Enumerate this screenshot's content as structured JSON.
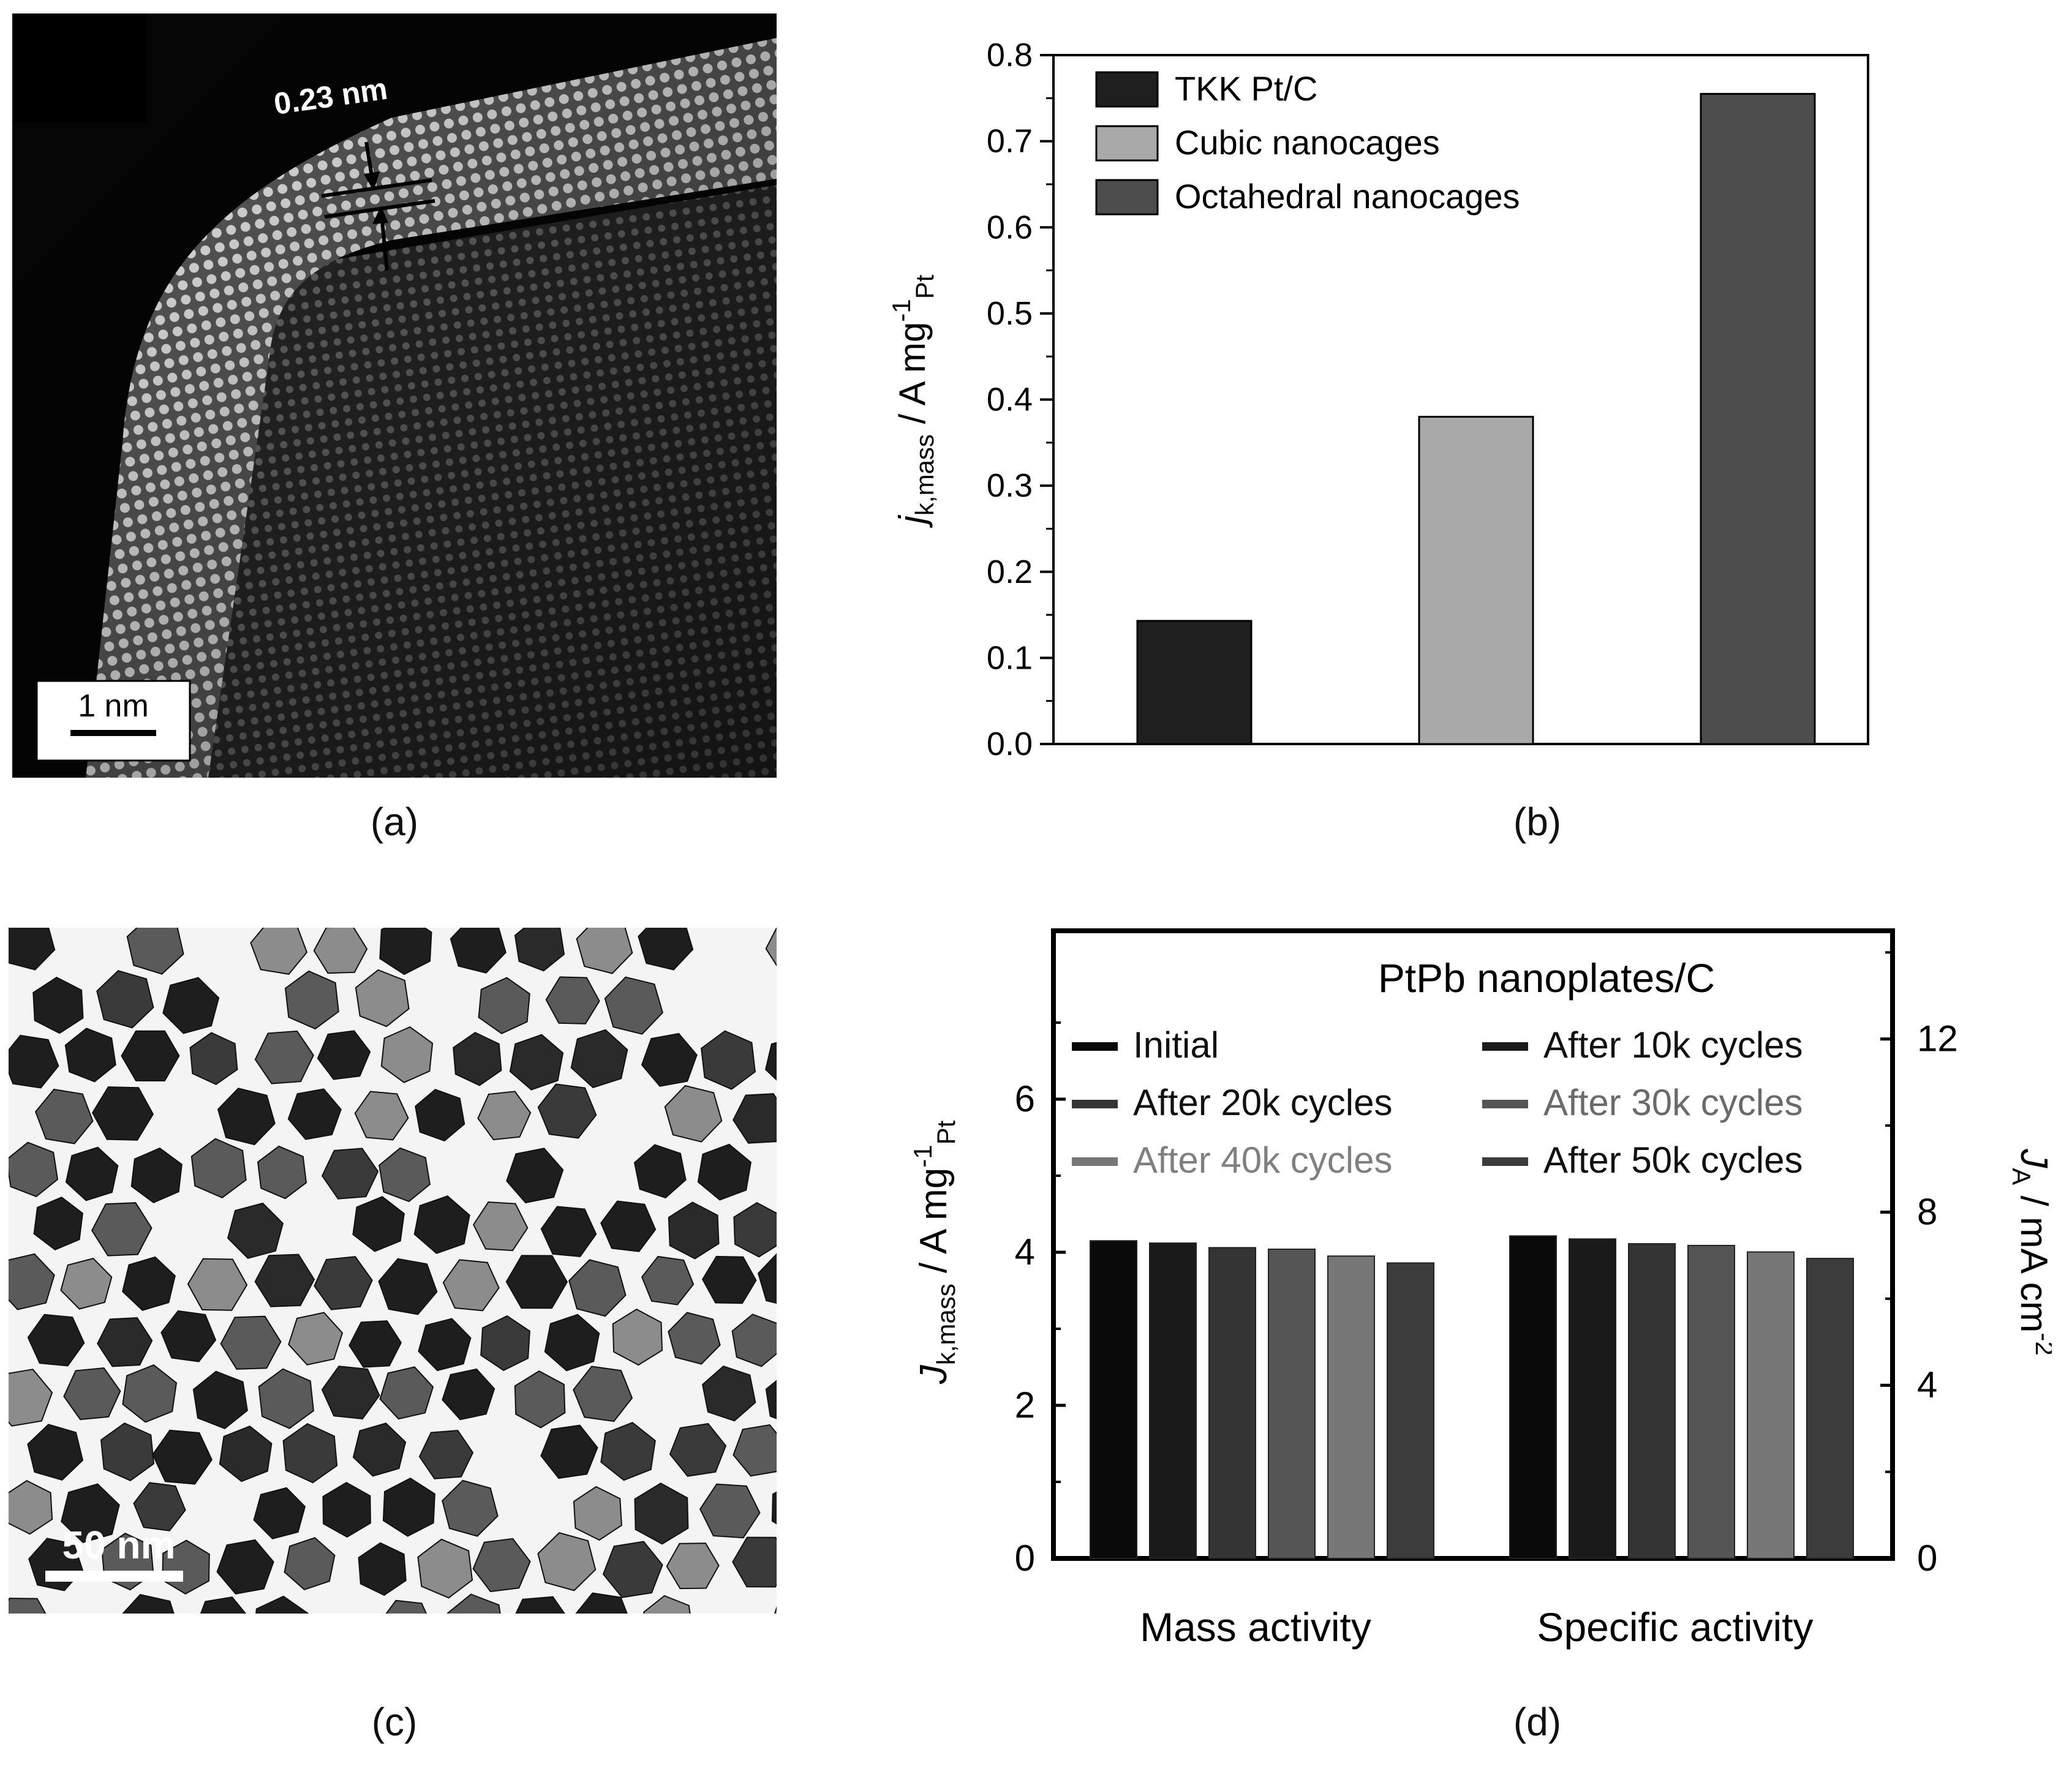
{
  "panels": {
    "a": {
      "caption": "(a)",
      "spacing_label": "0.23 nm",
      "scalebar_label": "1 nm",
      "colors": {
        "background": "#050505",
        "lattice": "#dcdcdc",
        "scalebar_box": "#ffffff"
      }
    },
    "b": {
      "caption": "(b)"
    },
    "c": {
      "caption": "(c)",
      "scalebar_label": "50 nm",
      "colors": {
        "background": "#f4f4f4",
        "dark": "#1e1e1e",
        "mid": "#5a5a5a",
        "light": "#8c8c8c"
      }
    },
    "d": {
      "caption": "(d)"
    }
  },
  "chart_data": [
    {
      "panel": "b",
      "type": "bar",
      "title": "",
      "xlabel": "",
      "ylabel": "j",
      "ylabel_sub": "k,mass",
      "ylabel_unit": " / A mg",
      "ylabel_sup": "-1",
      "ylabel_unit_sub": "Pt",
      "ylim": [
        0,
        0.8
      ],
      "yticks": [
        "0.0",
        "0.1",
        "0.2",
        "0.3",
        "0.4",
        "0.5",
        "0.6",
        "0.7",
        "0.8"
      ],
      "legend_position": "top-left",
      "series": [
        {
          "name": "TKK Pt/C",
          "value": 0.143,
          "color": "#1f1f1f"
        },
        {
          "name": "Cubic nanocages",
          "value": 0.38,
          "color": "#a9a9a9"
        },
        {
          "name": "Octahedral nanocages",
          "value": 0.755,
          "color": "#4d4d4d"
        }
      ],
      "grid": false
    },
    {
      "panel": "d",
      "type": "bar",
      "title": "PtPb nanoplates/C",
      "categories": [
        "Mass activity",
        "Specific activity"
      ],
      "ylabel_left": "J",
      "ylabel_left_sub": "k,mass",
      "ylabel_left_unit": " / A mg",
      "ylabel_left_sup": "-1",
      "ylabel_left_unit_sub": "Pt",
      "ylabel_right": "J",
      "ylabel_right_sub": "A",
      "ylabel_right_unit": " / mA cm",
      "ylabel_right_sup": "-2",
      "ylim_left": [
        0,
        8.2
      ],
      "ylim_right": [
        0,
        14.5
      ],
      "yticks_left": [
        "0",
        "2",
        "4",
        "6"
      ],
      "yticks_right": [
        "0",
        "4",
        "8",
        "12"
      ],
      "legend_position": "top",
      "series": [
        {
          "name": "Initial",
          "values": [
            4.15,
            7.45
          ],
          "color": "#0a0a0a"
        },
        {
          "name": "After 10k cycles",
          "values": [
            4.12,
            7.38
          ],
          "color": "#1a1a1a"
        },
        {
          "name": "After 20k cycles",
          "values": [
            4.06,
            7.27
          ],
          "color": "#343434"
        },
        {
          "name": "After 30k cycles",
          "values": [
            4.04,
            7.23
          ],
          "color": "#555555"
        },
        {
          "name": "After 40k cycles",
          "values": [
            3.95,
            7.08
          ],
          "color": "#777777"
        },
        {
          "name": "After 50k cycles",
          "values": [
            3.86,
            6.93
          ],
          "color": "#3c3c3c"
        }
      ],
      "grid": false
    }
  ]
}
